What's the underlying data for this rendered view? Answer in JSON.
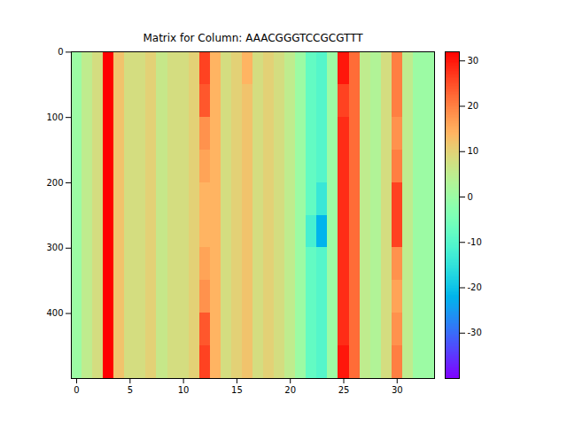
{
  "chart_data": {
    "type": "heatmap",
    "title": "Matrix for Column: AAACGGGTCCGCGTTT",
    "color": "rainbow",
    "x": [
      0,
      1,
      2,
      3,
      4,
      5,
      6,
      7,
      8,
      9,
      10,
      11,
      12,
      13,
      14,
      15,
      16,
      17,
      18,
      19,
      20,
      21,
      22,
      23,
      24,
      25,
      26,
      27,
      28,
      29,
      30,
      31,
      32,
      33
    ],
    "y_edges": [
      -0.5,
      49.5,
      99.5,
      149.5,
      199.5,
      249.5,
      299.5,
      349.5,
      399.5,
      449.5,
      499.5
    ],
    "cells": [
      [
        0,
        5,
        8,
        32,
        12,
        8,
        8,
        10,
        6,
        8,
        8,
        10,
        26,
        14,
        8,
        10,
        14,
        8,
        10,
        8,
        5,
        0,
        -8,
        -10,
        0,
        30,
        22,
        5,
        3,
        8,
        20,
        5,
        0,
        0
      ],
      [
        0,
        5,
        8,
        32,
        12,
        8,
        8,
        10,
        6,
        8,
        8,
        10,
        24,
        14,
        8,
        10,
        12,
        8,
        10,
        8,
        5,
        0,
        -8,
        -10,
        0,
        26,
        22,
        5,
        3,
        8,
        20,
        5,
        0,
        0
      ],
      [
        0,
        5,
        8,
        32,
        12,
        8,
        8,
        10,
        6,
        8,
        8,
        10,
        18,
        14,
        8,
        10,
        12,
        8,
        10,
        8,
        5,
        0,
        -8,
        -10,
        0,
        28,
        22,
        5,
        3,
        8,
        18,
        5,
        0,
        0
      ],
      [
        0,
        5,
        8,
        32,
        12,
        8,
        8,
        10,
        6,
        8,
        8,
        10,
        16,
        14,
        8,
        10,
        12,
        8,
        10,
        8,
        5,
        0,
        -8,
        -10,
        0,
        28,
        22,
        5,
        3,
        8,
        20,
        5,
        0,
        0
      ],
      [
        0,
        5,
        8,
        32,
        12,
        8,
        8,
        10,
        6,
        8,
        8,
        10,
        14,
        14,
        8,
        10,
        12,
        8,
        10,
        8,
        5,
        0,
        -8,
        -14,
        0,
        28,
        22,
        5,
        3,
        8,
        26,
        5,
        0,
        0
      ],
      [
        0,
        5,
        8,
        32,
        12,
        8,
        8,
        10,
        6,
        8,
        8,
        10,
        14,
        14,
        8,
        10,
        12,
        8,
        10,
        8,
        5,
        0,
        -12,
        -22,
        0,
        28,
        22,
        5,
        3,
        8,
        26,
        5,
        0,
        0
      ],
      [
        0,
        5,
        8,
        32,
        12,
        8,
        8,
        10,
        6,
        8,
        8,
        10,
        16,
        14,
        8,
        10,
        12,
        8,
        10,
        8,
        5,
        0,
        -8,
        -10,
        0,
        28,
        22,
        5,
        3,
        8,
        18,
        5,
        0,
        0
      ],
      [
        0,
        5,
        8,
        32,
        12,
        8,
        8,
        10,
        6,
        8,
        8,
        10,
        18,
        14,
        8,
        10,
        12,
        8,
        10,
        8,
        5,
        0,
        -8,
        -10,
        0,
        28,
        22,
        5,
        3,
        8,
        16,
        5,
        0,
        0
      ],
      [
        0,
        5,
        8,
        32,
        12,
        8,
        8,
        10,
        6,
        8,
        8,
        10,
        24,
        14,
        8,
        10,
        12,
        8,
        10,
        8,
        5,
        0,
        -8,
        -10,
        0,
        28,
        22,
        5,
        3,
        8,
        18,
        5,
        0,
        0
      ],
      [
        0,
        5,
        8,
        32,
        12,
        8,
        8,
        10,
        6,
        8,
        8,
        10,
        26,
        14,
        8,
        10,
        12,
        8,
        10,
        8,
        5,
        0,
        -8,
        -10,
        0,
        30,
        22,
        5,
        3,
        8,
        20,
        5,
        0,
        0
      ]
    ],
    "xlim": [
      -0.5,
      33.5
    ],
    "ylim": [
      499.5,
      -0.5
    ],
    "xticks": [
      0,
      5,
      10,
      15,
      20,
      25,
      30
    ],
    "yticks": [
      0,
      100,
      200,
      300,
      400
    ],
    "colorbar": {
      "range": [
        -40,
        32
      ],
      "ticks": [
        -30,
        -20,
        -10,
        0,
        10,
        20,
        30
      ]
    }
  }
}
